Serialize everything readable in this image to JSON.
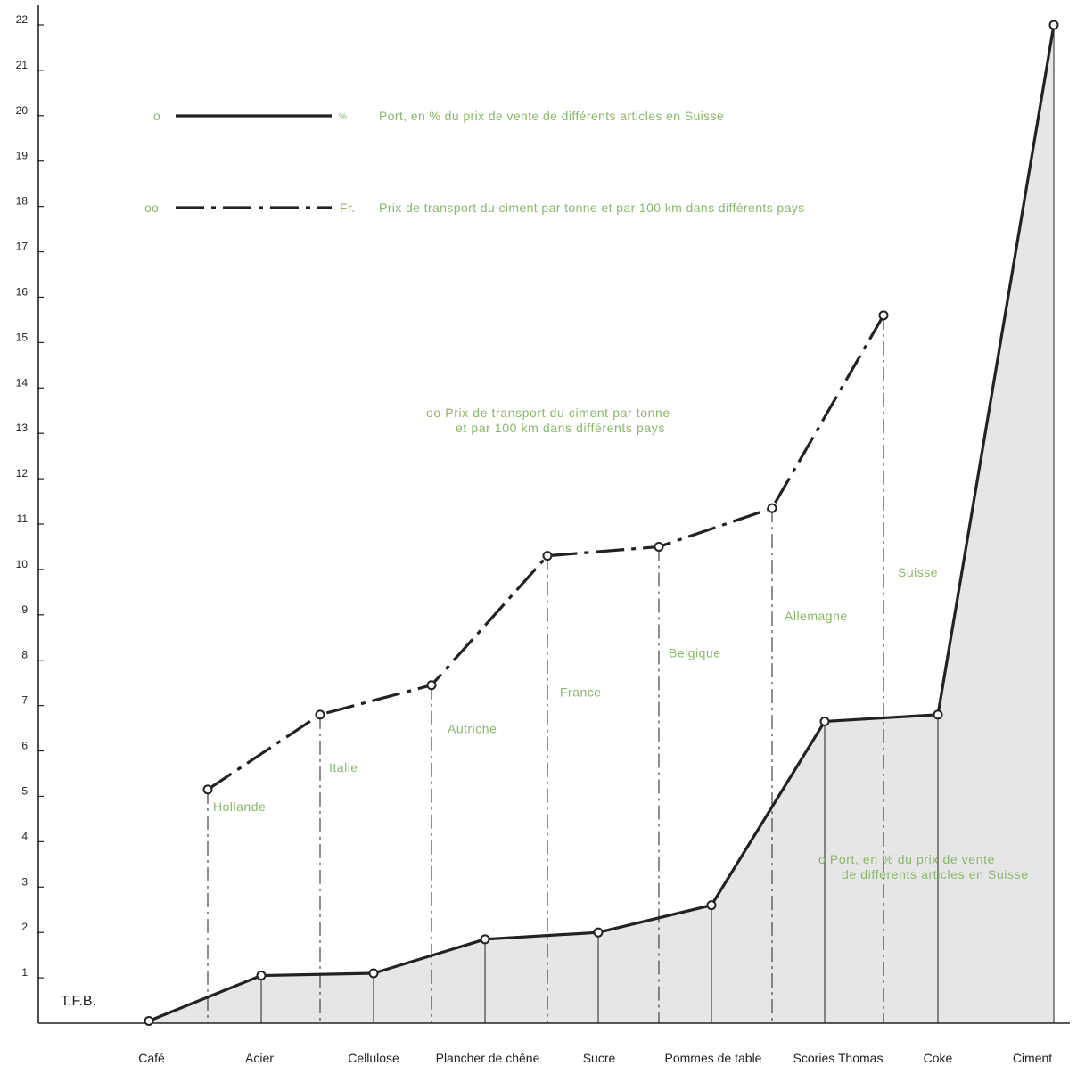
{
  "chart_data": {
    "type": "line",
    "tfb_label": "T.F.B.",
    "y_ticks": [
      1,
      2,
      3,
      4,
      5,
      6,
      7,
      8,
      9,
      10,
      11,
      12,
      13,
      14,
      15,
      16,
      17,
      18,
      19,
      20,
      21,
      22
    ],
    "ylim": [
      0,
      22.5
    ],
    "series": [
      {
        "key": "port",
        "marker_label": "o",
        "unit": "%",
        "legend": "Port, en % du prix de vente de différents articles en Suisse",
        "note": [
          "o   Port, en % du prix de vente",
          "de différents articles en Suisse"
        ],
        "categories": [
          "Café",
          "Acier",
          "Cellulose",
          "Plancher de chêne",
          "Sucre",
          "Pommes de table",
          "Scories Thomas",
          "Coke",
          "Ciment"
        ],
        "values": [
          0.05,
          1.05,
          1.1,
          1.85,
          2.0,
          2.6,
          6.65,
          6.8,
          22.0
        ]
      },
      {
        "key": "transport",
        "marker_label": "oo",
        "unit": "Fr.",
        "legend": "Prix de transport du ciment par tonne et par 100 km dans différents pays",
        "note": [
          "oo  Prix de transport du ciment par tonne",
          "et par 100 km dans différents pays"
        ],
        "categories": [
          "Hollande",
          "Italie",
          "Autriche",
          "France",
          "Belgique",
          "Allemagne",
          "Suisse"
        ],
        "values": [
          5.15,
          6.8,
          7.45,
          10.3,
          10.5,
          11.35,
          15.6
        ]
      }
    ]
  }
}
